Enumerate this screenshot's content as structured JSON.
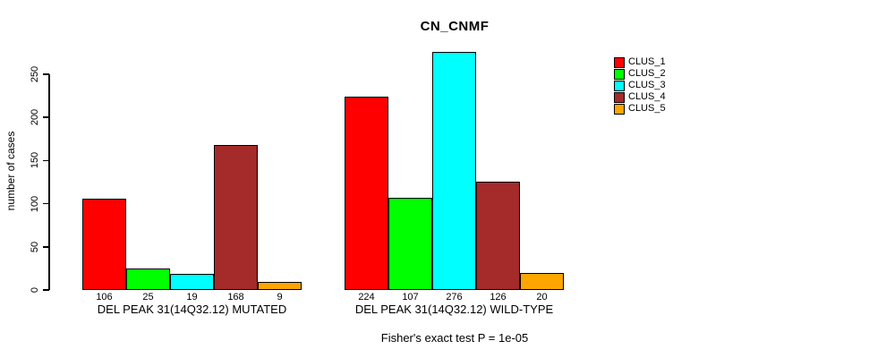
{
  "chart_data": {
    "type": "bar",
    "title": "CN_CNMF",
    "ylabel": "number of cases",
    "xlabel": "",
    "ylim": [
      0,
      250
    ],
    "yticks": [
      0,
      50,
      100,
      150,
      200,
      250
    ],
    "grid": false,
    "legend_position": "right",
    "series": [
      "CLUS_1",
      "CLUS_2",
      "CLUS_3",
      "CLUS_4",
      "CLUS_5"
    ],
    "colors": [
      "#FF0000",
      "#00FF00",
      "#00FFFF",
      "#A52A2A",
      "#FFA500"
    ],
    "groups": [
      {
        "label": "DEL PEAK 31(14Q32.12) MUTATED",
        "values": [
          106,
          25,
          19,
          168,
          9
        ]
      },
      {
        "label": "DEL PEAK 31(14Q32.12) WILD-TYPE",
        "values": [
          224,
          107,
          276,
          126,
          20
        ]
      }
    ],
    "bar_value_labels": true,
    "annotation": "Fisher's exact test P = 1e-05"
  }
}
